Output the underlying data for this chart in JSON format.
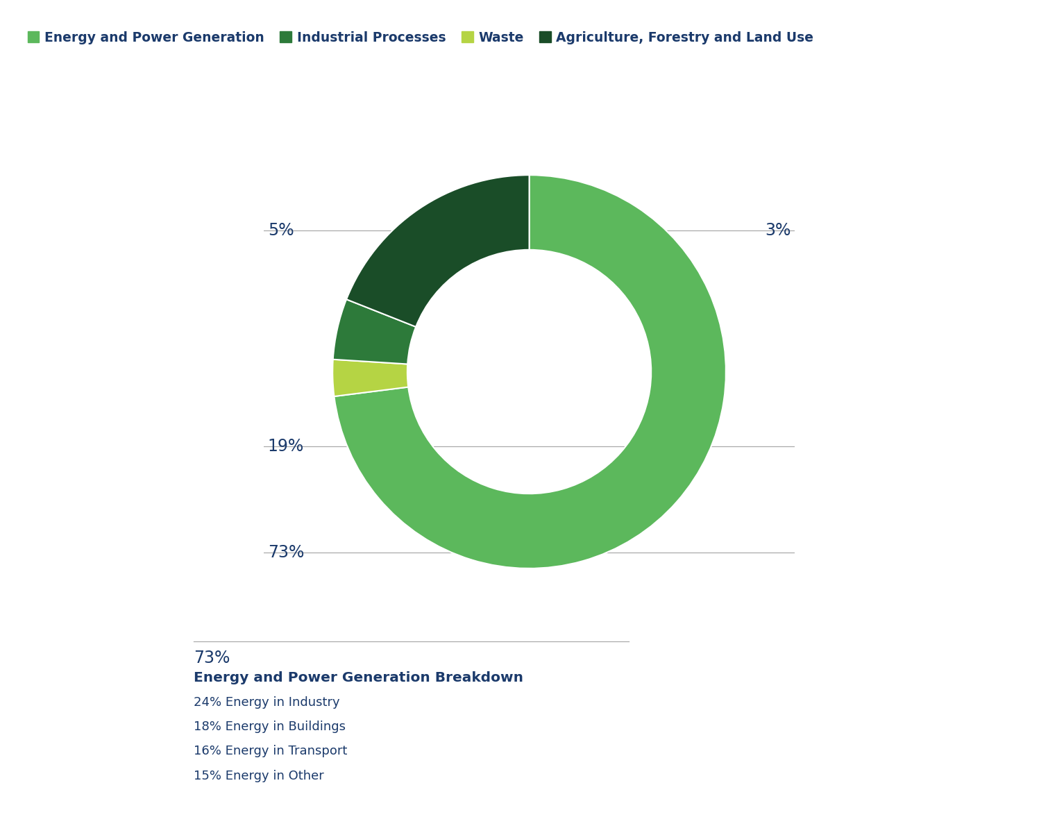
{
  "slices_values": [
    73,
    3,
    5,
    19
  ],
  "slices_colors": [
    "#5cb85c",
    "#b5d444",
    "#2d7a3a",
    "#1a4d28"
  ],
  "legend_colors": [
    "#5cb85c",
    "#2d7a3a",
    "#b5d444",
    "#1a4d28"
  ],
  "legend_labels": [
    "Energy and Power Generation",
    "Industrial Processes",
    "Waste",
    "Agriculture, Forestry and Land Use"
  ],
  "text_color": "#1b3a6b",
  "background_color": "#ffffff",
  "breakdown_title": "Energy and Power Generation Breakdown",
  "breakdown_items": [
    "24% Energy in Industry",
    "18% Energy in Buildings",
    "16% Energy in Transport",
    "15% Energy in Other"
  ]
}
